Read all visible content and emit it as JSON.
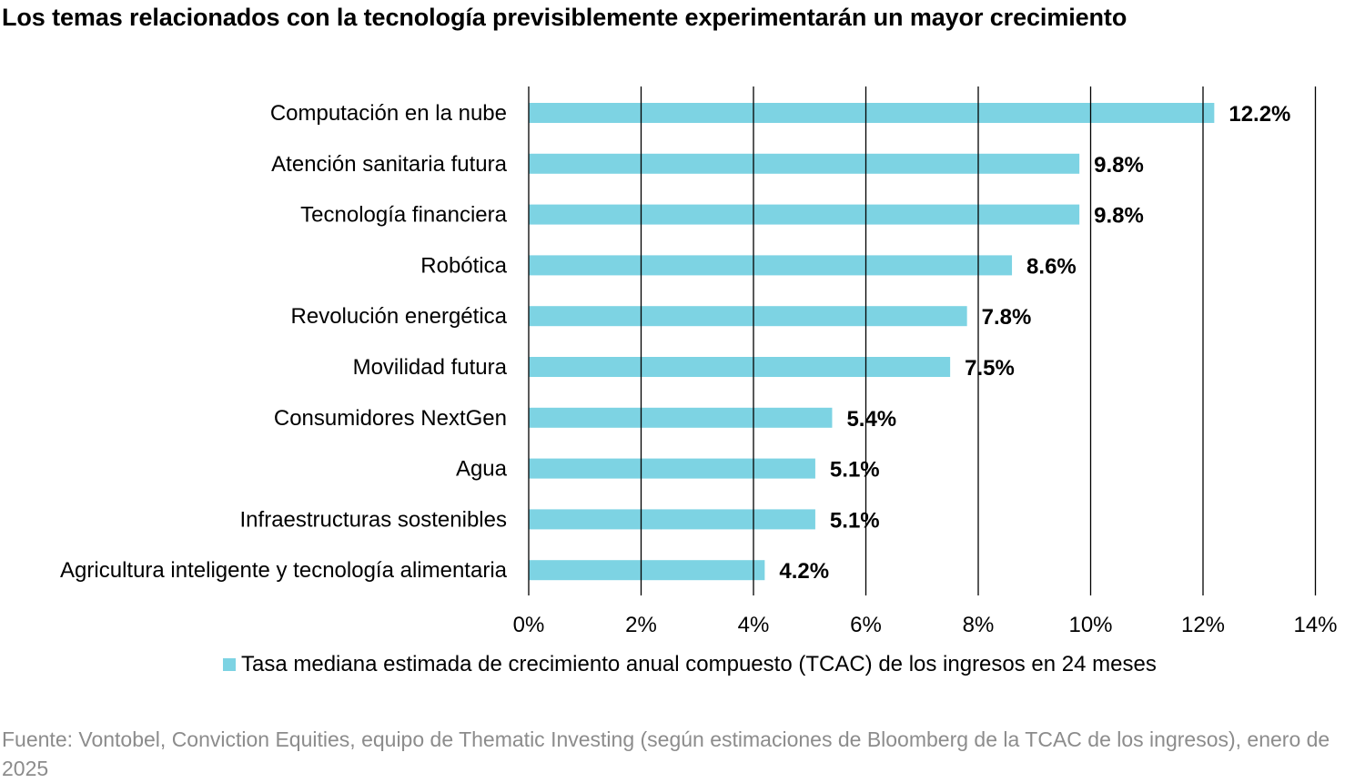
{
  "title": "Los temas relacionados con la tecnología previsiblemente experimentarán un mayor crecimiento",
  "source": "Fuente: Vontobel, Conviction Equities, equipo de Thematic Investing (según estimaciones de Bloomberg de la TCAC de los ingresos), enero de 2025",
  "bar_color": "#7dd3e3",
  "chart_data": {
    "type": "bar",
    "orientation": "horizontal",
    "categories": [
      "Computación en la nube",
      "Atención sanitaria futura",
      "Tecnología financiera",
      "Robótica",
      "Revolución energética",
      "Movilidad futura",
      "Consumidores NextGen",
      "Agua",
      "Infraestructuras sostenibles",
      "Agricultura inteligente y tecnología alimentaria"
    ],
    "series": [
      {
        "name": "Tasa mediana estimada de crecimiento anual compuesto (TCAC) de los ingresos en 24 meses",
        "values": [
          12.2,
          9.8,
          9.8,
          8.6,
          7.8,
          7.5,
          5.4,
          5.1,
          5.1,
          4.2
        ],
        "data_labels": [
          "12.2%",
          "9.8%",
          "9.8%",
          "8.6%",
          "7.8%",
          "7.5%",
          "5.4%",
          "5.1%",
          "5.1%",
          "4.2%"
        ]
      }
    ],
    "xlim": [
      0,
      14
    ],
    "x_ticks": [
      0,
      2,
      4,
      6,
      8,
      10,
      12,
      14
    ],
    "x_tick_labels": [
      "0%",
      "2%",
      "4%",
      "6%",
      "8%",
      "10%",
      "12%",
      "14%"
    ],
    "grid": true,
    "legend_position": "bottom"
  }
}
